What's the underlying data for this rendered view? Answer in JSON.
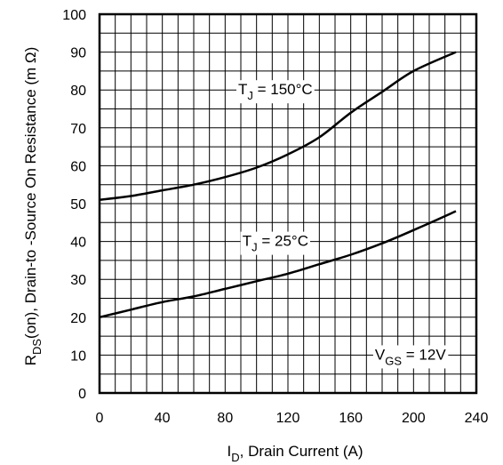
{
  "chart_data": {
    "type": "line",
    "xlabel": {
      "main": "I",
      "sub": "D",
      "rest": ", Drain Current (A)"
    },
    "ylabel": {
      "main": "R",
      "sub": "DS",
      "rest": "(on),  Drain-to -Source On Resistance (m  Ω)"
    },
    "xlim": [
      0,
      240
    ],
    "ylim": [
      0,
      100
    ],
    "xticks": [
      0,
      40,
      80,
      120,
      160,
      200,
      240
    ],
    "yticks": [
      0,
      10,
      20,
      30,
      40,
      50,
      60,
      70,
      80,
      90,
      100
    ],
    "grid": true,
    "series": [
      {
        "name": "T_J = 150°C",
        "x": [
          0,
          20,
          40,
          60,
          80,
          100,
          120,
          140,
          160,
          180,
          200,
          227
        ],
        "y": [
          51,
          52,
          53.5,
          55,
          57,
          59.5,
          63,
          67.5,
          74,
          79.5,
          85,
          90
        ]
      },
      {
        "name": "T_J = 25°C",
        "x": [
          0,
          20,
          40,
          60,
          80,
          100,
          120,
          140,
          160,
          180,
          200,
          227
        ],
        "y": [
          20,
          22,
          24,
          25.5,
          27.5,
          29.5,
          31.5,
          34,
          36.5,
          39.5,
          43,
          48
        ]
      }
    ],
    "annotations": [
      {
        "main": "T",
        "sub": "J",
        "rest": " = 150°C",
        "x": 112,
        "y": 80
      },
      {
        "main": "T",
        "sub": "J",
        "rest": " = 25°C",
        "x": 112,
        "y": 40
      },
      {
        "main": "V",
        "sub": "GS",
        "rest": " = 12V",
        "x": 198,
        "y": 10
      }
    ]
  }
}
